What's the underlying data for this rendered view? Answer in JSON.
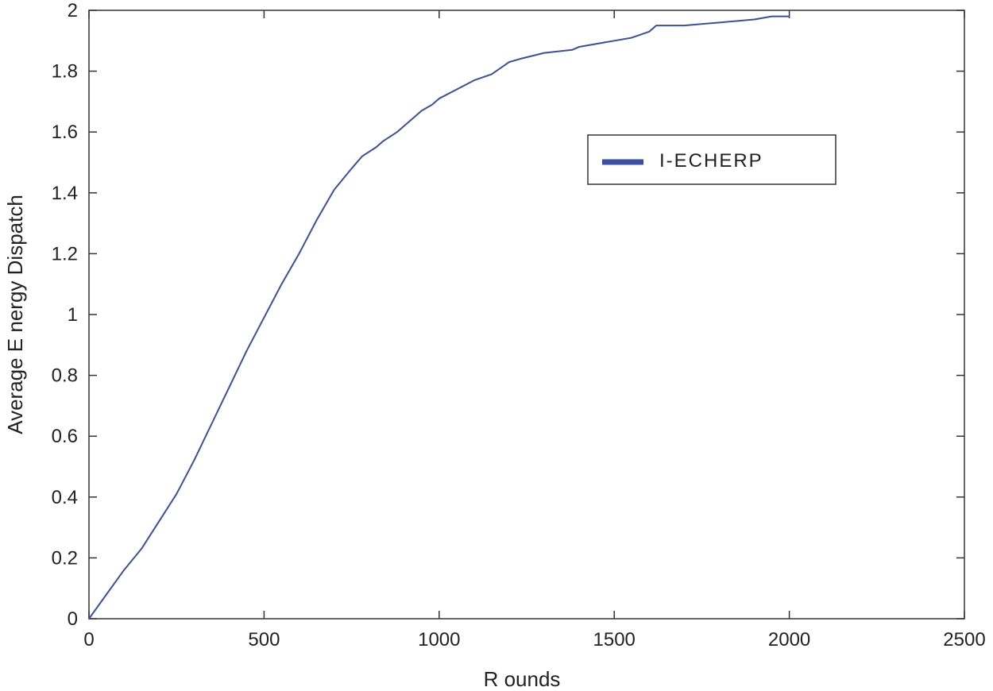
{
  "chart_data": {
    "type": "line",
    "title": "",
    "xlabel": "R ounds",
    "ylabel": "Average E nergy Dispatch",
    "xlim": [
      0,
      2500
    ],
    "ylim": [
      0,
      2
    ],
    "xticks": [
      "0",
      "500",
      "1000",
      "1500",
      "2000",
      "2500"
    ],
    "yticks": [
      "0",
      "0.2",
      "0.4",
      "0.6",
      "0.8",
      "1",
      "1.2",
      "1.4",
      "1.6",
      "1.8",
      "2"
    ],
    "grid": false,
    "legend": {
      "position": "upper-right-middle"
    },
    "series": [
      {
        "name": "I-ECHERP",
        "color": "#3a4fa3",
        "x": [
          0,
          100,
          150,
          200,
          250,
          300,
          350,
          400,
          450,
          500,
          550,
          600,
          650,
          700,
          750,
          780,
          820,
          840,
          880,
          900,
          920,
          950,
          980,
          1000,
          1050,
          1100,
          1150,
          1200,
          1230,
          1300,
          1380,
          1400,
          1450,
          1500,
          1550,
          1600,
          1620,
          1650,
          1700,
          1800,
          1900,
          1950,
          2000
        ],
        "y": [
          0,
          0.16,
          0.23,
          0.32,
          0.41,
          0.52,
          0.64,
          0.76,
          0.88,
          0.99,
          1.1,
          1.2,
          1.31,
          1.41,
          1.48,
          1.52,
          1.55,
          1.57,
          1.6,
          1.62,
          1.64,
          1.67,
          1.69,
          1.71,
          1.74,
          1.77,
          1.79,
          1.83,
          1.84,
          1.86,
          1.87,
          1.88,
          1.89,
          1.9,
          1.91,
          1.93,
          1.95,
          1.95,
          1.95,
          1.96,
          1.97,
          1.98,
          1.98
        ]
      }
    ]
  }
}
